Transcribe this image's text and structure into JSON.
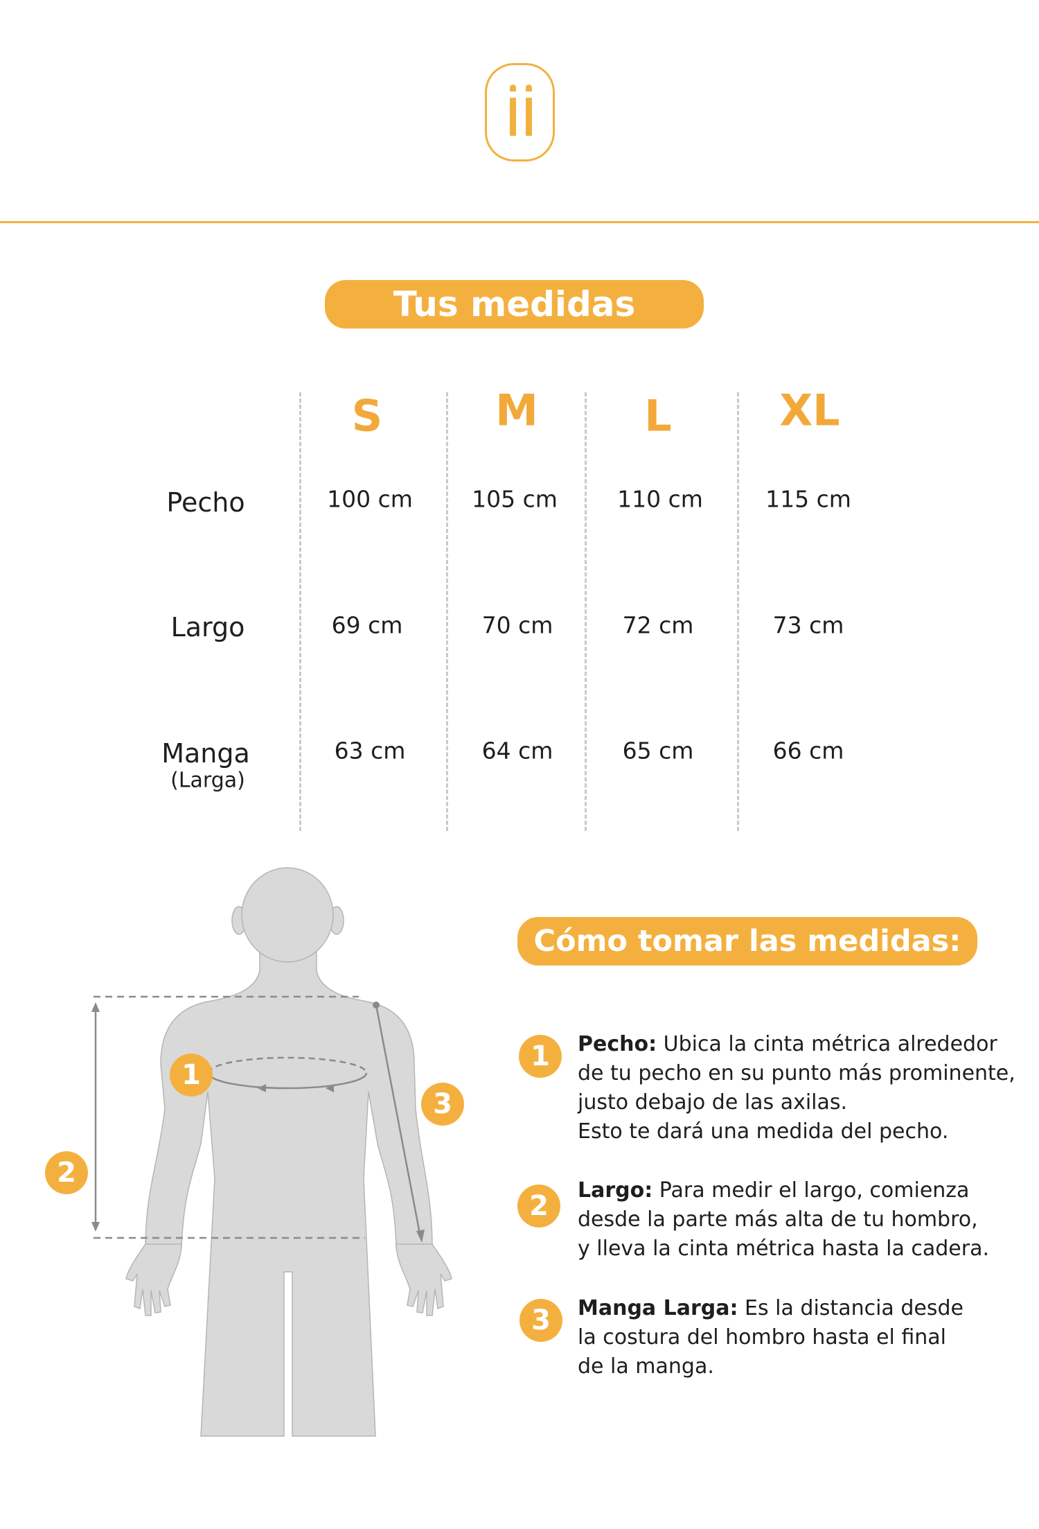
{
  "logo": {
    "icon": "ii-logo-icon",
    "color": "#f2b13f"
  },
  "title": "Tus medidas",
  "table": {
    "sizes": [
      "S",
      "M",
      "L",
      "XL"
    ],
    "rows": [
      {
        "label": "Pecho",
        "sub": "",
        "values": [
          "100 cm",
          "105 cm",
          "110 cm",
          "115 cm"
        ]
      },
      {
        "label": "Largo",
        "sub": "",
        "values": [
          "69 cm",
          "70 cm",
          "72 cm",
          "73 cm"
        ]
      },
      {
        "label": "Manga",
        "sub": "(Larga)",
        "values": [
          "63 cm",
          "64 cm",
          "65 cm",
          "66 cm"
        ]
      }
    ]
  },
  "howto": {
    "title": "Cómo tomar las medidas:",
    "items": [
      {
        "number": "1",
        "term": "Pecho:",
        "lines": [
          "Ubica la cinta métrica alrededor",
          "de tu pecho en su punto más prominente,",
          "justo debajo de las axilas.",
          "Esto te dará una medida del pecho."
        ]
      },
      {
        "number": "2",
        "term": "Largo:",
        "lines": [
          "Para medir el largo, comienza",
          "desde la parte más alta de tu hombro,",
          "y lleva la cinta métrica hasta la cadera."
        ]
      },
      {
        "number": "3",
        "term": "Manga Larga:",
        "lines": [
          "Es la distancia desde",
          "la costura del hombro hasta el final",
          "de la manga."
        ]
      }
    ]
  },
  "figure": {
    "badges": [
      "1",
      "2",
      "3"
    ]
  },
  "colors": {
    "accent": "#f4b03f",
    "figure": "#d9d9d9",
    "lines": "#8a8a8a"
  }
}
